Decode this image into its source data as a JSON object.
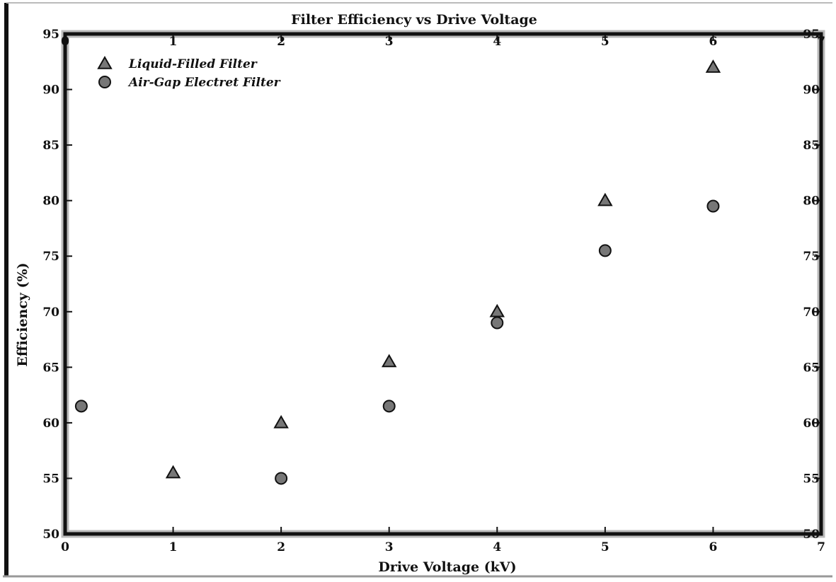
{
  "chart_data": {
    "type": "scatter",
    "title": "Filter Efficiency vs Drive Voltage",
    "xlabel": "Drive Voltage (kV)",
    "ylabel": "Efficiency (%)",
    "xlim": [
      0,
      7
    ],
    "ylim": [
      50,
      95
    ],
    "x_ticks": [
      0,
      1,
      2,
      3,
      4,
      5,
      6,
      7
    ],
    "y_ticks": [
      50,
      55,
      60,
      65,
      70,
      75,
      80,
      85,
      90,
      95
    ],
    "grid": false,
    "legend_position": "top-left",
    "series": [
      {
        "name": "Liquid-Filled Filter",
        "marker": "triangle",
        "points": [
          [
            1.0,
            55.5
          ],
          [
            2.0,
            60.0
          ],
          [
            3.0,
            65.5
          ],
          [
            4.0,
            70.0
          ],
          [
            5.0,
            80.0
          ],
          [
            6.0,
            92.0
          ]
        ]
      },
      {
        "name": "Air-Gap Electret Filter",
        "marker": "circle",
        "points": [
          [
            2.0,
            55.0
          ],
          [
            3.0,
            61.5
          ],
          [
            4.0,
            69.0
          ],
          [
            5.0,
            75.5
          ],
          [
            6.0,
            79.5
          ]
        ]
      }
    ],
    "outliers": [
      [
        0.15,
        61.5
      ]
    ]
  }
}
